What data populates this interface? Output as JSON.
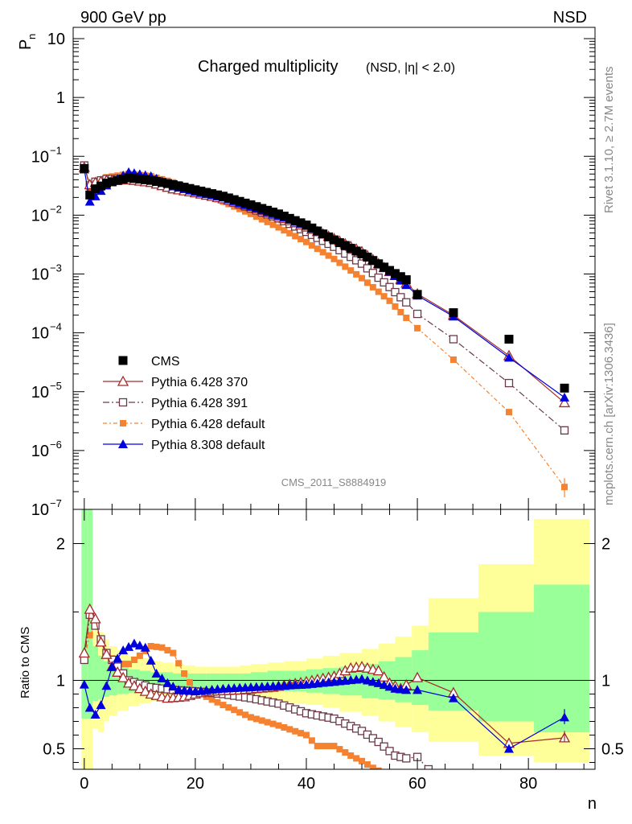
{
  "header": {
    "left": "900 GeV pp",
    "right": "NSD"
  },
  "side_text": {
    "rivet": "Rivet 3.1.10, ≥ 2.7M events",
    "mcplots": "mcplots.cern.ch [arXiv:1306.3436]"
  },
  "analysis_tag": "CMS_2011_S8884919",
  "colors": {
    "cms": "#000000",
    "p370": "#a52a2a",
    "p391": "#6b3a4a",
    "p6def": "#f58231",
    "p8": "#0000dd",
    "band_stat": "#99ff99",
    "band_tot": "#ffff99"
  },
  "chart_data": [
    {
      "type": "scatter",
      "title": "Charged multiplicity",
      "title_suffix": "(NSD, |η| < 2.0)",
      "xlabel": "n",
      "ylabel": "P",
      "ylabel_sub": "n",
      "ylog": true,
      "ylim": [
        1e-07,
        10
      ],
      "xlim": [
        -2,
        92
      ],
      "yticks": [
        {
          "v": 10,
          "base": "10",
          "exp": ""
        },
        {
          "v": 1,
          "base": "1",
          "exp": ""
        },
        {
          "v": 0.1,
          "base": "10",
          "exp": "−1"
        },
        {
          "v": 0.01,
          "base": "10",
          "exp": "−2"
        },
        {
          "v": 0.001,
          "base": "10",
          "exp": "−3"
        },
        {
          "v": 0.0001,
          "base": "10",
          "exp": "−4"
        },
        {
          "v": 1e-05,
          "base": "10",
          "exp": "−5"
        },
        {
          "v": 1e-06,
          "base": "10",
          "exp": "−6"
        },
        {
          "v": 1e-07,
          "base": "10",
          "exp": "−7"
        }
      ],
      "legend_position": "bottom-left",
      "series": [
        {
          "name": "CMS",
          "key": "cms",
          "marker": "square-filled",
          "anchors": [
            [
              0,
              0.062
            ],
            [
              1,
              0.022
            ],
            [
              2,
              0.028
            ],
            [
              4,
              0.035
            ],
            [
              8,
              0.043
            ],
            [
              12,
              0.039
            ],
            [
              16,
              0.033
            ],
            [
              20,
              0.027
            ],
            [
              25,
              0.021
            ],
            [
              30,
              0.015
            ],
            [
              35,
              0.0105
            ],
            [
              40,
              0.0068
            ],
            [
              45,
              0.0038
            ],
            [
              50,
              0.0022
            ],
            [
              55,
              0.00115
            ],
            [
              58,
              0.0008
            ],
            [
              60,
              0.00045
            ],
            [
              66.5,
              0.00022
            ],
            [
              76.5,
              7.8e-05
            ],
            [
              86.5,
              1.15e-05
            ]
          ]
        },
        {
          "name": "Pythia 6.428 370",
          "key": "p370",
          "marker": "triangle-open",
          "anchors": [
            [
              0,
              0.065
            ],
            [
              1,
              0.033
            ],
            [
              2,
              0.036
            ],
            [
              4,
              0.039
            ],
            [
              8,
              0.04
            ],
            [
              12,
              0.036
            ],
            [
              16,
              0.028
            ],
            [
              20,
              0.024
            ],
            [
              25,
              0.019
            ],
            [
              30,
              0.014
            ],
            [
              35,
              0.0095
            ],
            [
              40,
              0.0063
            ],
            [
              45,
              0.004
            ],
            [
              50,
              0.0024
            ],
            [
              55,
              0.0011
            ],
            [
              58,
              0.0007
            ],
            [
              60,
              0.00046
            ],
            [
              66.5,
              0.0002
            ],
            [
              76.5,
              4.1e-05
            ],
            [
              86.5,
              6.5e-06
            ]
          ]
        },
        {
          "name": "Pythia 6.428 391",
          "key": "p391",
          "marker": "square-open",
          "anchors": [
            [
              0,
              0.07
            ],
            [
              1,
              0.032
            ],
            [
              2,
              0.037
            ],
            [
              4,
              0.041
            ],
            [
              8,
              0.042
            ],
            [
              12,
              0.037
            ],
            [
              16,
              0.03
            ],
            [
              20,
              0.025
            ],
            [
              25,
              0.019
            ],
            [
              30,
              0.013
            ],
            [
              35,
              0.0088
            ],
            [
              40,
              0.0052
            ],
            [
              45,
              0.0029
            ],
            [
              50,
              0.0015
            ],
            [
              55,
              0.0006
            ],
            [
              58,
              0.00033
            ],
            [
              60,
              0.00021
            ],
            [
              66.5,
              7.8e-05
            ],
            [
              76.5,
              1.4e-05
            ],
            [
              86.5,
              2.2e-06
            ]
          ]
        },
        {
          "name": "Pythia 6.428 default",
          "key": "p6def",
          "marker": "square-filled-small",
          "anchors": [
            [
              0,
              0.07
            ],
            [
              1,
              0.029
            ],
            [
              2,
              0.034
            ],
            [
              4,
              0.044
            ],
            [
              8,
              0.05
            ],
            [
              12,
              0.046
            ],
            [
              16,
              0.036
            ],
            [
              20,
              0.027
            ],
            [
              25,
              0.017
            ],
            [
              30,
              0.0105
            ],
            [
              35,
              0.0062
            ],
            [
              40,
              0.0035
            ],
            [
              45,
              0.0018
            ],
            [
              50,
              0.00085
            ],
            [
              55,
              0.00035
            ],
            [
              58,
              0.00018
            ],
            [
              60,
              0.00012
            ],
            [
              66.5,
              3.5e-05
            ],
            [
              76.5,
              4.5e-06
            ],
            [
              86.5,
              2.4e-07
            ]
          ]
        },
        {
          "name": "Pythia 8.308 default",
          "key": "p8",
          "marker": "triangle-filled",
          "anchors": [
            [
              0,
              0.06
            ],
            [
              1,
              0.017
            ],
            [
              2,
              0.021
            ],
            [
              4,
              0.032
            ],
            [
              8,
              0.054
            ],
            [
              12,
              0.046
            ],
            [
              16,
              0.031
            ],
            [
              20,
              0.025
            ],
            [
              25,
              0.02
            ],
            [
              30,
              0.014
            ],
            [
              35,
              0.0098
            ],
            [
              40,
              0.0066
            ],
            [
              45,
              0.0038
            ],
            [
              50,
              0.0022
            ],
            [
              55,
              0.0011
            ],
            [
              58,
              0.00065
            ],
            [
              60,
              0.00043
            ],
            [
              66.5,
              0.00019
            ],
            [
              76.5,
              3.8e-05
            ],
            [
              86.5,
              8e-06
            ]
          ]
        }
      ]
    },
    {
      "type": "line",
      "title": "",
      "xlabel": "n",
      "ylabel": "Ratio to CMS",
      "ylim": [
        0.35,
        2.25
      ],
      "xticks": [
        0,
        20,
        40,
        60,
        80
      ],
      "yticks": [
        0.5,
        1,
        2
      ],
      "reference_line": 1,
      "bands": {
        "edges": [
          -0.5,
          0.5,
          1.5,
          2.5,
          3.5,
          4.5,
          6,
          8,
          10,
          12,
          14,
          16,
          18,
          20,
          22,
          25,
          28,
          30,
          33,
          36,
          40,
          43,
          46,
          50,
          53,
          56,
          59,
          62,
          71,
          81,
          91
        ],
        "total_lo": [
          0.3,
          0.3,
          0.65,
          0.62,
          0.7,
          0.74,
          0.78,
          0.81,
          0.83,
          0.85,
          0.86,
          0.87,
          0.87,
          0.88,
          0.88,
          0.87,
          0.86,
          0.85,
          0.84,
          0.83,
          0.82,
          0.8,
          0.77,
          0.74,
          0.7,
          0.66,
          0.62,
          0.55,
          0.45,
          0.4,
          0.36
        ],
        "total_hi": [
          2.4,
          2.4,
          1.4,
          1.35,
          1.3,
          1.25,
          1.22,
          1.18,
          1.16,
          1.14,
          1.13,
          1.12,
          1.11,
          1.1,
          1.1,
          1.1,
          1.11,
          1.12,
          1.13,
          1.14,
          1.16,
          1.18,
          1.2,
          1.23,
          1.27,
          1.32,
          1.4,
          1.6,
          1.85,
          2.18,
          2.18
        ],
        "stat_lo": [
          0.72,
          0.72,
          0.85,
          0.86,
          0.88,
          0.89,
          0.9,
          0.91,
          0.92,
          0.93,
          0.93,
          0.94,
          0.94,
          0.94,
          0.94,
          0.94,
          0.94,
          0.93,
          0.93,
          0.92,
          0.91,
          0.9,
          0.89,
          0.87,
          0.86,
          0.84,
          0.82,
          0.78,
          0.7,
          0.62,
          0.36
        ],
        "stat_hi": [
          2.4,
          2.4,
          1.25,
          1.18,
          1.14,
          1.12,
          1.1,
          1.08,
          1.07,
          1.06,
          1.06,
          1.05,
          1.05,
          1.05,
          1.05,
          1.05,
          1.05,
          1.06,
          1.07,
          1.07,
          1.08,
          1.09,
          1.1,
          1.12,
          1.14,
          1.17,
          1.22,
          1.35,
          1.5,
          1.7,
          1.7
        ]
      },
      "series": [
        {
          "name": "Pythia 6.428 370",
          "key": "p370",
          "anchors": [
            [
              0,
              1.2
            ],
            [
              1,
              1.52
            ],
            [
              2,
              1.45
            ],
            [
              3,
              1.28
            ],
            [
              5,
              1.1
            ],
            [
              8,
              0.98
            ],
            [
              12,
              0.9
            ],
            [
              15,
              0.87
            ],
            [
              18,
              0.88
            ],
            [
              22,
              0.92
            ],
            [
              28,
              0.93
            ],
            [
              34,
              0.95
            ],
            [
              40,
              0.99
            ],
            [
              45,
              1.03
            ],
            [
              48,
              1.09
            ],
            [
              50,
              1.1
            ],
            [
              53,
              1.07
            ],
            [
              55,
              0.98
            ],
            [
              57,
              0.94
            ],
            [
              60,
              1.02
            ],
            [
              66.5,
              0.91
            ],
            [
              76.5,
              0.54
            ],
            [
              86.5,
              0.58
            ]
          ]
        },
        {
          "name": "Pythia 6.428 391",
          "key": "p391",
          "anchors": [
            [
              0,
              1.15
            ],
            [
              1,
              1.48
            ],
            [
              2,
              1.4
            ],
            [
              4,
              1.2
            ],
            [
              8,
              1.0
            ],
            [
              12,
              0.95
            ],
            [
              16,
              0.93
            ],
            [
              20,
              0.92
            ],
            [
              25,
              0.9
            ],
            [
              30,
              0.87
            ],
            [
              35,
              0.83
            ],
            [
              40,
              0.76
            ],
            [
              45,
              0.72
            ],
            [
              50,
              0.63
            ],
            [
              53,
              0.55
            ],
            [
              56,
              0.45
            ],
            [
              58,
              0.43
            ],
            [
              60,
              0.44
            ],
            [
              62,
              0.35
            ]
          ]
        },
        {
          "name": "Pythia 6.428 default",
          "key": "p6def",
          "anchors": [
            [
              0,
              1.16
            ],
            [
              1,
              1.33
            ],
            [
              2,
              1.4
            ],
            [
              3,
              1.3
            ],
            [
              4,
              1.2
            ],
            [
              6,
              1.12
            ],
            [
              8,
              1.12
            ],
            [
              10,
              1.18
            ],
            [
              12,
              1.25
            ],
            [
              14,
              1.24
            ],
            [
              16,
              1.2
            ],
            [
              18,
              1.05
            ],
            [
              20,
              0.92
            ],
            [
              25,
              0.82
            ],
            [
              30,
              0.73
            ],
            [
              35,
              0.67
            ],
            [
              40,
              0.6
            ],
            [
              42,
              0.52
            ],
            [
              45,
              0.52
            ],
            [
              48,
              0.45
            ],
            [
              50,
              0.41
            ],
            [
              52,
              0.36
            ],
            [
              53,
              0.34
            ]
          ]
        },
        {
          "name": "Pythia 8.308 default",
          "key": "p8",
          "anchors": [
            [
              0,
              0.97
            ],
            [
              1,
              0.8
            ],
            [
              2,
              0.75
            ],
            [
              3,
              0.82
            ],
            [
              5,
              1.1
            ],
            [
              7,
              1.22
            ],
            [
              9,
              1.27
            ],
            [
              11,
              1.24
            ],
            [
              13,
              1.05
            ],
            [
              15,
              0.98
            ],
            [
              17,
              0.93
            ],
            [
              20,
              0.92
            ],
            [
              25,
              0.94
            ],
            [
              30,
              0.95
            ],
            [
              35,
              0.96
            ],
            [
              40,
              0.97
            ],
            [
              45,
              0.99
            ],
            [
              50,
              1.01
            ],
            [
              53,
              0.98
            ],
            [
              56,
              0.94
            ],
            [
              58,
              0.93
            ],
            [
              60,
              0.93
            ],
            [
              66.5,
              0.87
            ],
            [
              76.5,
              0.5
            ],
            [
              86.5,
              0.73
            ]
          ]
        }
      ]
    }
  ]
}
